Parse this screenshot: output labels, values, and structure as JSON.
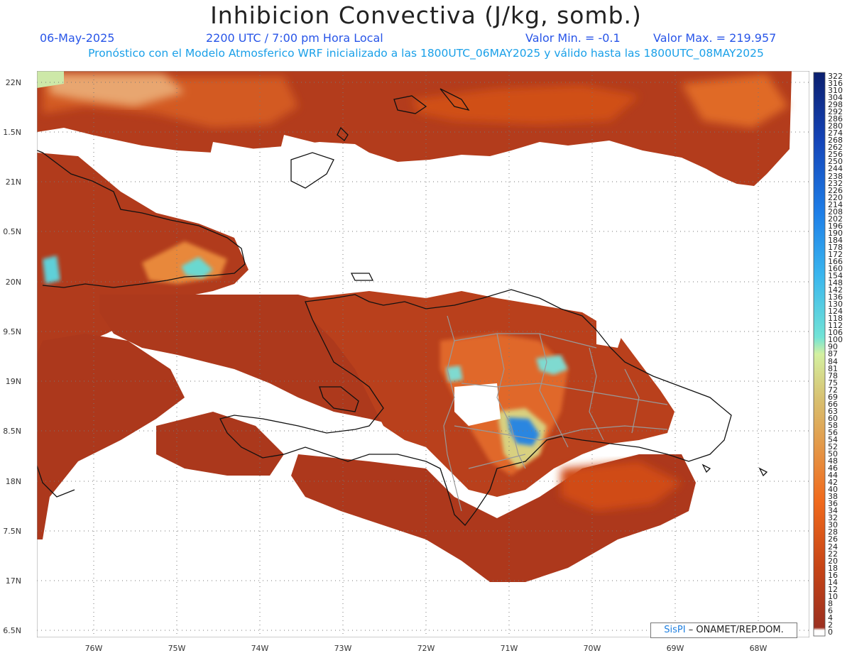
{
  "header": {
    "title": "Inhibicion Convectiva (J/kg, somb.)",
    "date": "06-May-2025",
    "time": "2200 UTC / 7:00 pm Hora Local",
    "min_label": "Valor Min. = -0.1",
    "max_label": "Valor Max. = 219.957",
    "description": "Pronóstico con el Modelo Atmosferico WRF inicializado a las 1800UTC_06MAY2025 y válido hasta las  1800UTC_08MAY2025"
  },
  "axes": {
    "lat_labels": [
      "22N",
      "1.5N",
      "21N",
      "0.5N",
      "20N",
      "9.5N",
      "19N",
      "8.5N",
      "18N",
      "7.5N",
      "17N",
      "6.5N"
    ],
    "lon_labels": [
      "76W",
      "75W",
      "74W",
      "73W",
      "72W",
      "71W",
      "70W",
      "69W",
      "68W"
    ]
  },
  "colorbar": {
    "labels": [
      "322",
      "316",
      "310",
      "304",
      "298",
      "292",
      "286",
      "280",
      "274",
      "268",
      "262",
      "256",
      "250",
      "244",
      "238",
      "232",
      "226",
      "220",
      "214",
      "208",
      "202",
      "196",
      "190",
      "184",
      "178",
      "172",
      "166",
      "160",
      "154",
      "148",
      "142",
      "136",
      "130",
      "124",
      "118",
      "112",
      "106",
      "100",
      "90",
      "87",
      "84",
      "81",
      "78",
      "75",
      "72",
      "69",
      "66",
      "63",
      "60",
      "58",
      "56",
      "54",
      "52",
      "50",
      "48",
      "46",
      "44",
      "42",
      "40",
      "38",
      "36",
      "34",
      "32",
      "30",
      "28",
      "26",
      "24",
      "22",
      "20",
      "18",
      "16",
      "14",
      "12",
      "10",
      "8",
      "6",
      "4",
      "2",
      "0"
    ]
  },
  "credit": {
    "brand": "SisPI",
    "text": "– ONAMET/REP.DOM."
  },
  "colors": {
    "field_base": "#a8381e",
    "field_mid": "#cf4a12",
    "field_high": "#ee7a28",
    "field_peak": "#e8d37a",
    "cyan": "#5ed8d8",
    "blue": "#1e8ee8"
  }
}
